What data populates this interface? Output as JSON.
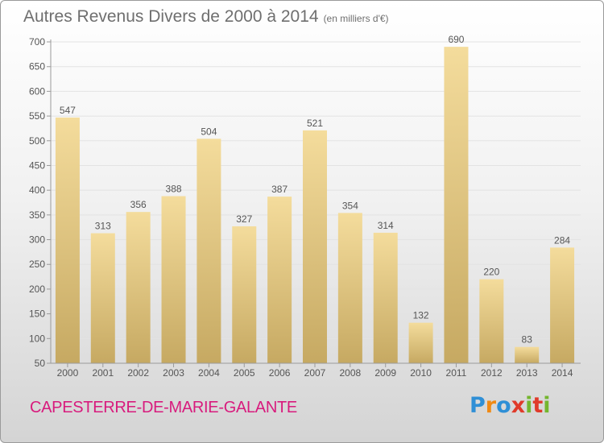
{
  "title": "Autres Revenus Divers de 2000 à 2014",
  "unit_note": "(en milliers d'€)",
  "location": "CAPESTERRE-DE-MARIE-GALANTE",
  "logo_text": "Proxiti",
  "colors": {
    "bar_light": "#f4dc9c",
    "bar_dark": "#c6a962",
    "axis_text": "#555555",
    "title_text": "#6f6f6f",
    "location_text": "#d81b7d"
  },
  "chart_data": {
    "type": "bar",
    "categories": [
      "2000",
      "2001",
      "2002",
      "2003",
      "2004",
      "2005",
      "2006",
      "2007",
      "2008",
      "2009",
      "2010",
      "2011",
      "2012",
      "2013",
      "2014"
    ],
    "values": [
      547,
      313,
      356,
      388,
      504,
      327,
      387,
      521,
      354,
      314,
      132,
      690,
      220,
      83,
      284
    ],
    "ylim": [
      50,
      700
    ],
    "yticks": [
      50,
      100,
      150,
      200,
      250,
      300,
      350,
      400,
      450,
      500,
      550,
      600,
      650,
      700
    ],
    "grid": true,
    "legend": "none"
  }
}
